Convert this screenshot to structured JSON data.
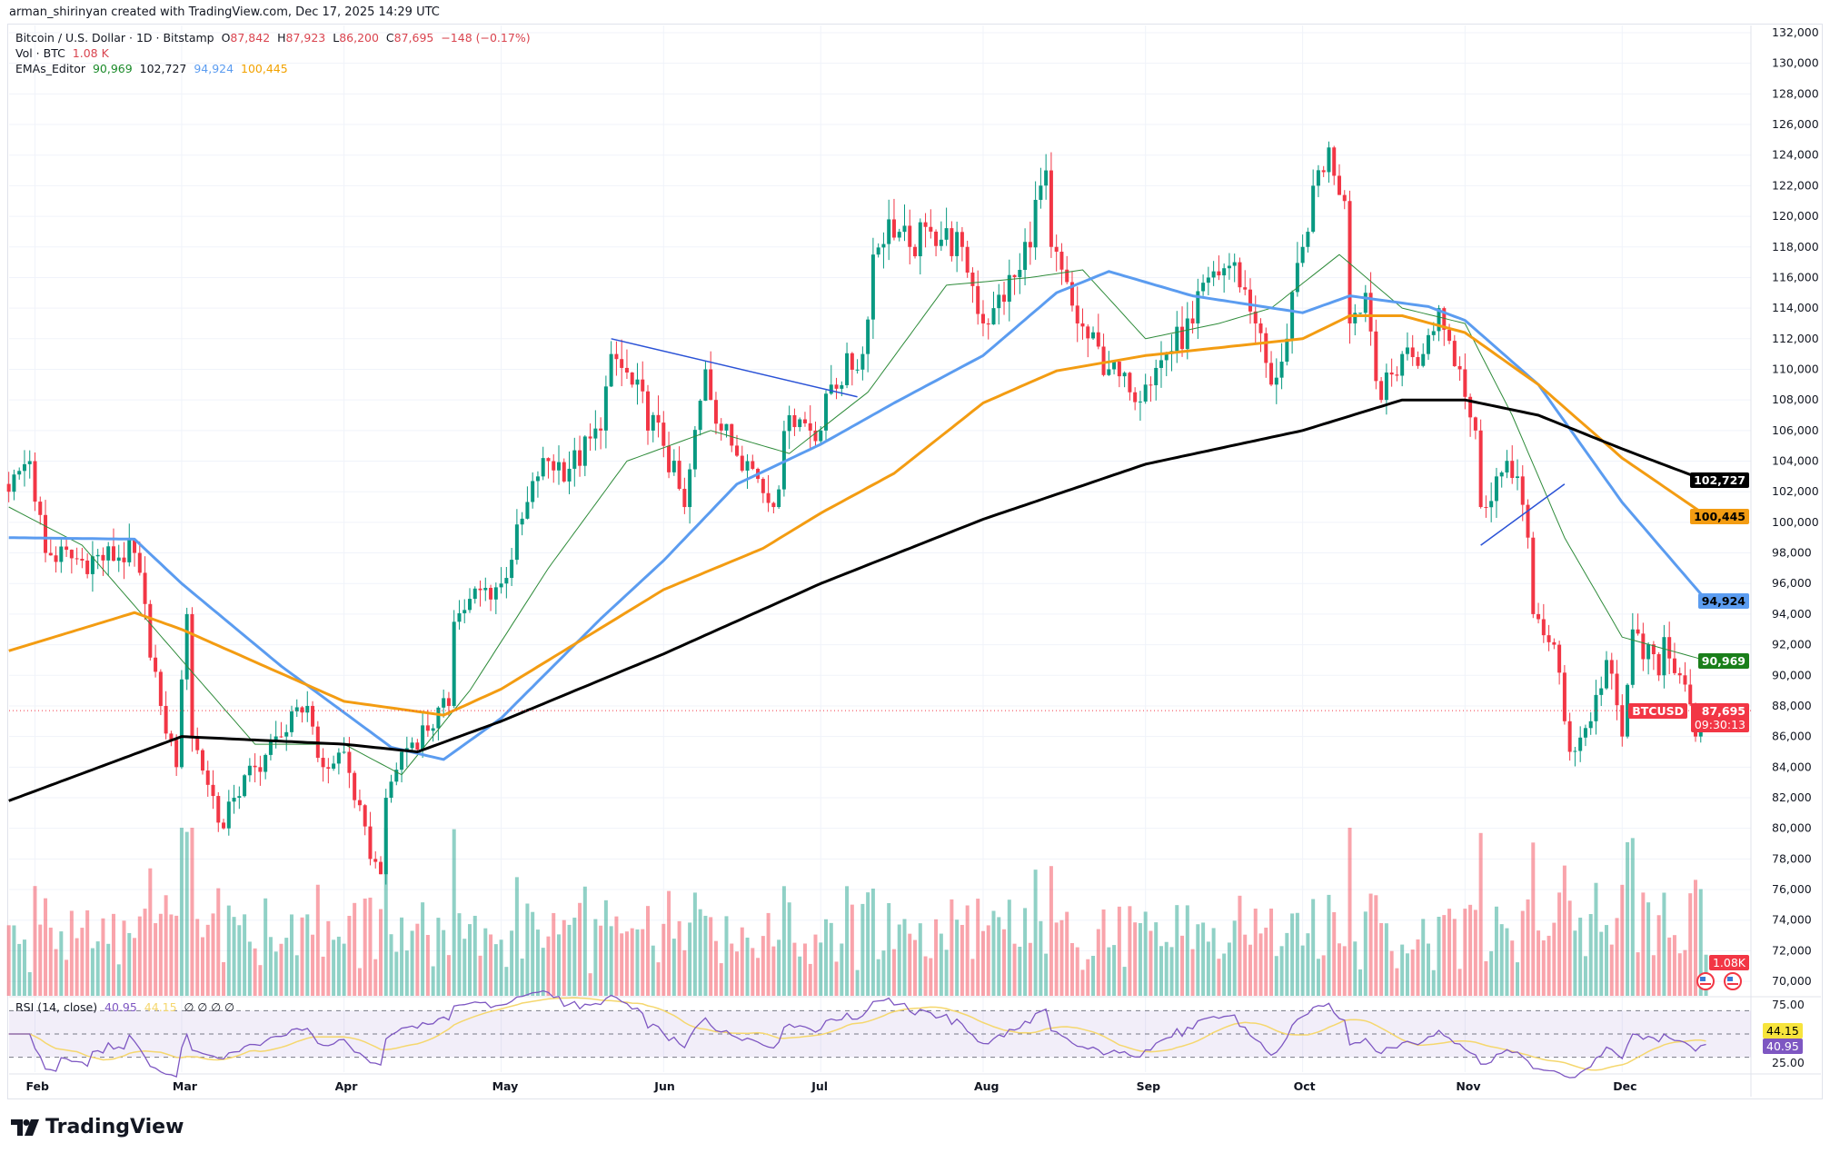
{
  "credit": "arman_shirinyan created with TradingView.com, Dec 17, 2025 14:29 UTC",
  "legend": {
    "symbol": "Bitcoin / U.S. Dollar · 1D · Bitstamp",
    "o_label": "O",
    "o": "87,842",
    "h_label": "H",
    "h": "87,923",
    "l_label": "L",
    "l": "86,200",
    "c_label": "C",
    "c": "87,695",
    "change": "−148 (−0.17%)",
    "vol_label": "Vol · BTC",
    "vol": "1.08 K",
    "ema_label": "EMAs_Editor",
    "ema20": "90,969",
    "ema200": "102,727",
    "ema50": "94,924",
    "ema100": "100,445"
  },
  "rsi_legend": {
    "label": "RSI (14, close)",
    "rsi": "40.95",
    "ma": "44.15",
    "extra": "∅ ∅ ∅ ∅"
  },
  "tags": {
    "ema200": "102,727",
    "ema100": "100,445",
    "ema50": "94,924",
    "ema20": "90,969",
    "symbol": "BTCUSD",
    "price": "87,695",
    "countdown": "09:30:13",
    "volume": "1.08K",
    "rsi_ma": "44.15",
    "rsi": "40.95"
  },
  "logo": "TradingView",
  "colors": {
    "up": "#089981",
    "down": "#f23645",
    "ema20": "#2e8b3a",
    "ema50": "#5b9cf0",
    "ema100": "#f39c12",
    "ema200": "#000000",
    "rsi": "#7e57c2",
    "rsi_ma": "#f5d76e",
    "trendline": "#2a52d6"
  },
  "chart_data": {
    "type": "candlestick",
    "year": 2025,
    "x_range": [
      "01-27",
      "12-17"
    ],
    "ylim": [
      70000,
      132000
    ],
    "grid": true,
    "xticks": [
      [
        "02-01",
        "Feb"
      ],
      [
        "03-01",
        "Mar"
      ],
      [
        "04-01",
        "Apr"
      ],
      [
        "05-01",
        "May"
      ],
      [
        "06-01",
        "Jun"
      ],
      [
        "07-01",
        "Jul"
      ],
      [
        "08-01",
        "Aug"
      ],
      [
        "09-01",
        "Sep"
      ],
      [
        "10-01",
        "Oct"
      ],
      [
        "11-01",
        "Nov"
      ],
      [
        "12-01",
        "Dec"
      ]
    ],
    "yticks": [
      "70,000",
      "72,000",
      "74,000",
      "76,000",
      "78,000",
      "80,000",
      "82,000",
      "84,000",
      "86,000",
      "88,000",
      "90,000",
      "92,000",
      "94,000",
      "96,000",
      "98,000",
      "100,000",
      "102,000",
      "104,000",
      "106,000",
      "108,000",
      "110,000",
      "112,000",
      "114,000",
      "116,000",
      "118,000",
      "120,000",
      "122,000",
      "124,000",
      "126,000",
      "128,000",
      "130,000",
      "132,000"
    ],
    "close_keypoints": [
      [
        "01-27",
        102000
      ],
      [
        "01-31",
        104000
      ],
      [
        "02-03",
        98000
      ],
      [
        "02-10",
        97500
      ],
      [
        "02-20",
        98000
      ],
      [
        "02-25",
        88000
      ],
      [
        "02-28",
        84000
      ],
      [
        "03-02",
        94000
      ],
      [
        "03-03",
        86000
      ],
      [
        "03-09",
        80000
      ],
      [
        "03-11",
        82000
      ],
      [
        "03-15",
        84000
      ],
      [
        "03-20",
        86000
      ],
      [
        "03-25",
        88000
      ],
      [
        "03-28",
        84000
      ],
      [
        "04-01",
        85000
      ],
      [
        "04-06",
        78000
      ],
      [
        "04-08",
        77000
      ],
      [
        "04-09",
        82000
      ],
      [
        "04-12",
        85000
      ],
      [
        "04-21",
        88000
      ],
      [
        "04-22",
        93500
      ],
      [
        "04-25",
        95000
      ],
      [
        "05-01",
        96000
      ],
      [
        "05-08",
        103000
      ],
      [
        "05-10",
        104000
      ],
      [
        "05-14",
        103500
      ],
      [
        "05-20",
        106000
      ],
      [
        "05-22",
        111000
      ],
      [
        "05-26",
        109000
      ],
      [
        "06-01",
        105000
      ],
      [
        "06-05",
        101000
      ],
      [
        "06-09",
        110000
      ],
      [
        "06-12",
        106000
      ],
      [
        "06-17",
        104000
      ],
      [
        "06-22",
        101000
      ],
      [
        "06-25",
        107000
      ],
      [
        "07-01",
        106000
      ],
      [
        "07-03",
        109000
      ],
      [
        "07-09",
        111000
      ],
      [
        "07-11",
        117500
      ],
      [
        "07-14",
        119800
      ],
      [
        "07-18",
        118000
      ],
      [
        "07-22",
        119000
      ],
      [
        "07-28",
        118000
      ],
      [
        "08-01",
        113000
      ],
      [
        "08-03",
        114000
      ],
      [
        "08-08",
        116500
      ],
      [
        "08-13",
        123000
      ],
      [
        "08-14",
        118000
      ],
      [
        "08-19",
        113000
      ],
      [
        "08-25",
        110000
      ],
      [
        "08-29",
        108500
      ],
      [
        "09-01",
        109000
      ],
      [
        "09-05",
        111000
      ],
      [
        "09-10",
        113000
      ],
      [
        "09-13",
        116000
      ],
      [
        "09-18",
        117000
      ],
      [
        "09-22",
        113000
      ],
      [
        "09-25",
        109000
      ],
      [
        "09-28",
        112000
      ],
      [
        "10-01",
        118000
      ],
      [
        "10-03",
        122000
      ],
      [
        "10-06",
        124500
      ],
      [
        "10-09",
        121000
      ],
      [
        "10-10",
        113000
      ],
      [
        "10-13",
        115000
      ],
      [
        "10-16",
        108000
      ],
      [
        "10-20",
        111000
      ],
      [
        "10-24",
        111000
      ],
      [
        "10-27",
        114000
      ],
      [
        "10-31",
        110000
      ],
      [
        "11-03",
        106000
      ],
      [
        "11-04",
        101000
      ],
      [
        "11-07",
        103000
      ],
      [
        "11-11",
        103000
      ],
      [
        "11-13",
        99000
      ],
      [
        "11-14",
        94000
      ],
      [
        "11-18",
        92000
      ],
      [
        "11-20",
        87000
      ],
      [
        "11-21",
        85000
      ],
      [
        "11-25",
        87000
      ],
      [
        "11-28",
        91000
      ],
      [
        "12-01",
        86000
      ],
      [
        "12-03",
        93000
      ],
      [
        "12-08",
        90000
      ],
      [
        "12-09",
        92500
      ],
      [
        "12-12",
        90000
      ],
      [
        "12-15",
        86000
      ],
      [
        "12-17",
        87695
      ]
    ],
    "series": [
      {
        "name": "EMA 20",
        "color_key": "ema20",
        "last": 90969,
        "points": [
          [
            "01-27",
            101000
          ],
          [
            "02-10",
            98500
          ],
          [
            "03-01",
            91000
          ],
          [
            "03-15",
            85500
          ],
          [
            "04-01",
            85500
          ],
          [
            "04-12",
            83500
          ],
          [
            "04-25",
            89000
          ],
          [
            "05-10",
            97000
          ],
          [
            "05-25",
            104000
          ],
          [
            "06-10",
            106000
          ],
          [
            "06-25",
            104500
          ],
          [
            "07-10",
            108500
          ],
          [
            "07-25",
            115500
          ],
          [
            "08-10",
            116000
          ],
          [
            "08-20",
            116500
          ],
          [
            "09-01",
            112000
          ],
          [
            "09-15",
            113000
          ],
          [
            "09-25",
            114000
          ],
          [
            "10-08",
            117500
          ],
          [
            "10-20",
            114000
          ],
          [
            "11-01",
            113000
          ],
          [
            "11-10",
            107000
          ],
          [
            "11-20",
            99000
          ],
          [
            "12-01",
            92500
          ],
          [
            "12-17",
            90969
          ]
        ]
      },
      {
        "name": "EMA 50",
        "color_key": "ema50",
        "last": 94924,
        "points": [
          [
            "01-27",
            99000
          ],
          [
            "02-20",
            98900
          ],
          [
            "03-01",
            96000
          ],
          [
            "03-20",
            90600
          ],
          [
            "04-10",
            85300
          ],
          [
            "04-20",
            84500
          ],
          [
            "05-01",
            87200
          ],
          [
            "05-20",
            93700
          ],
          [
            "06-01",
            97500
          ],
          [
            "06-15",
            102500
          ],
          [
            "07-01",
            105100
          ],
          [
            "07-15",
            107800
          ],
          [
            "08-01",
            110900
          ],
          [
            "08-15",
            115000
          ],
          [
            "08-25",
            116400
          ],
          [
            "09-10",
            114800
          ],
          [
            "10-01",
            113700
          ],
          [
            "10-10",
            114800
          ],
          [
            "10-25",
            114100
          ],
          [
            "11-01",
            113200
          ],
          [
            "11-15",
            109000
          ],
          [
            "12-01",
            101300
          ],
          [
            "12-17",
            94924
          ]
        ]
      },
      {
        "name": "EMA 100",
        "color_key": "ema100",
        "last": 100445,
        "points": [
          [
            "01-27",
            91600
          ],
          [
            "02-20",
            94100
          ],
          [
            "03-01",
            93000
          ],
          [
            "04-01",
            88300
          ],
          [
            "04-20",
            87400
          ],
          [
            "05-01",
            89100
          ],
          [
            "06-01",
            95600
          ],
          [
            "06-20",
            98300
          ],
          [
            "07-01",
            100600
          ],
          [
            "07-15",
            103200
          ],
          [
            "08-01",
            107800
          ],
          [
            "08-15",
            109900
          ],
          [
            "09-01",
            110900
          ],
          [
            "10-01",
            112000
          ],
          [
            "10-10",
            113500
          ],
          [
            "10-20",
            113500
          ],
          [
            "11-01",
            112400
          ],
          [
            "11-15",
            109000
          ],
          [
            "12-01",
            104200
          ],
          [
            "12-17",
            100445
          ]
        ]
      },
      {
        "name": "EMA 200",
        "color_key": "ema200",
        "last": 102727,
        "points": [
          [
            "01-27",
            81800
          ],
          [
            "03-01",
            86000
          ],
          [
            "04-01",
            85500
          ],
          [
            "04-15",
            85000
          ],
          [
            "05-01",
            87000
          ],
          [
            "06-01",
            91400
          ],
          [
            "07-01",
            96000
          ],
          [
            "08-01",
            100200
          ],
          [
            "09-01",
            103800
          ],
          [
            "10-01",
            106000
          ],
          [
            "10-20",
            108000
          ],
          [
            "11-01",
            108000
          ],
          [
            "11-15",
            107000
          ],
          [
            "12-01",
            104800
          ],
          [
            "12-17",
            102727
          ]
        ]
      }
    ],
    "trendlines": [
      [
        [
          "05-22",
          112000
        ],
        [
          "07-08",
          108200
        ]
      ],
      [
        [
          "11-04",
          98500
        ],
        [
          "11-20",
          102500
        ]
      ]
    ],
    "current_price": 87695,
    "rsi": {
      "period": 14,
      "last": 40.95,
      "ma_last": 44.15,
      "ylim": [
        20,
        80
      ],
      "levels": [
        70,
        50,
        30
      ],
      "yticks": [
        "75.00",
        "25.00"
      ]
    }
  }
}
